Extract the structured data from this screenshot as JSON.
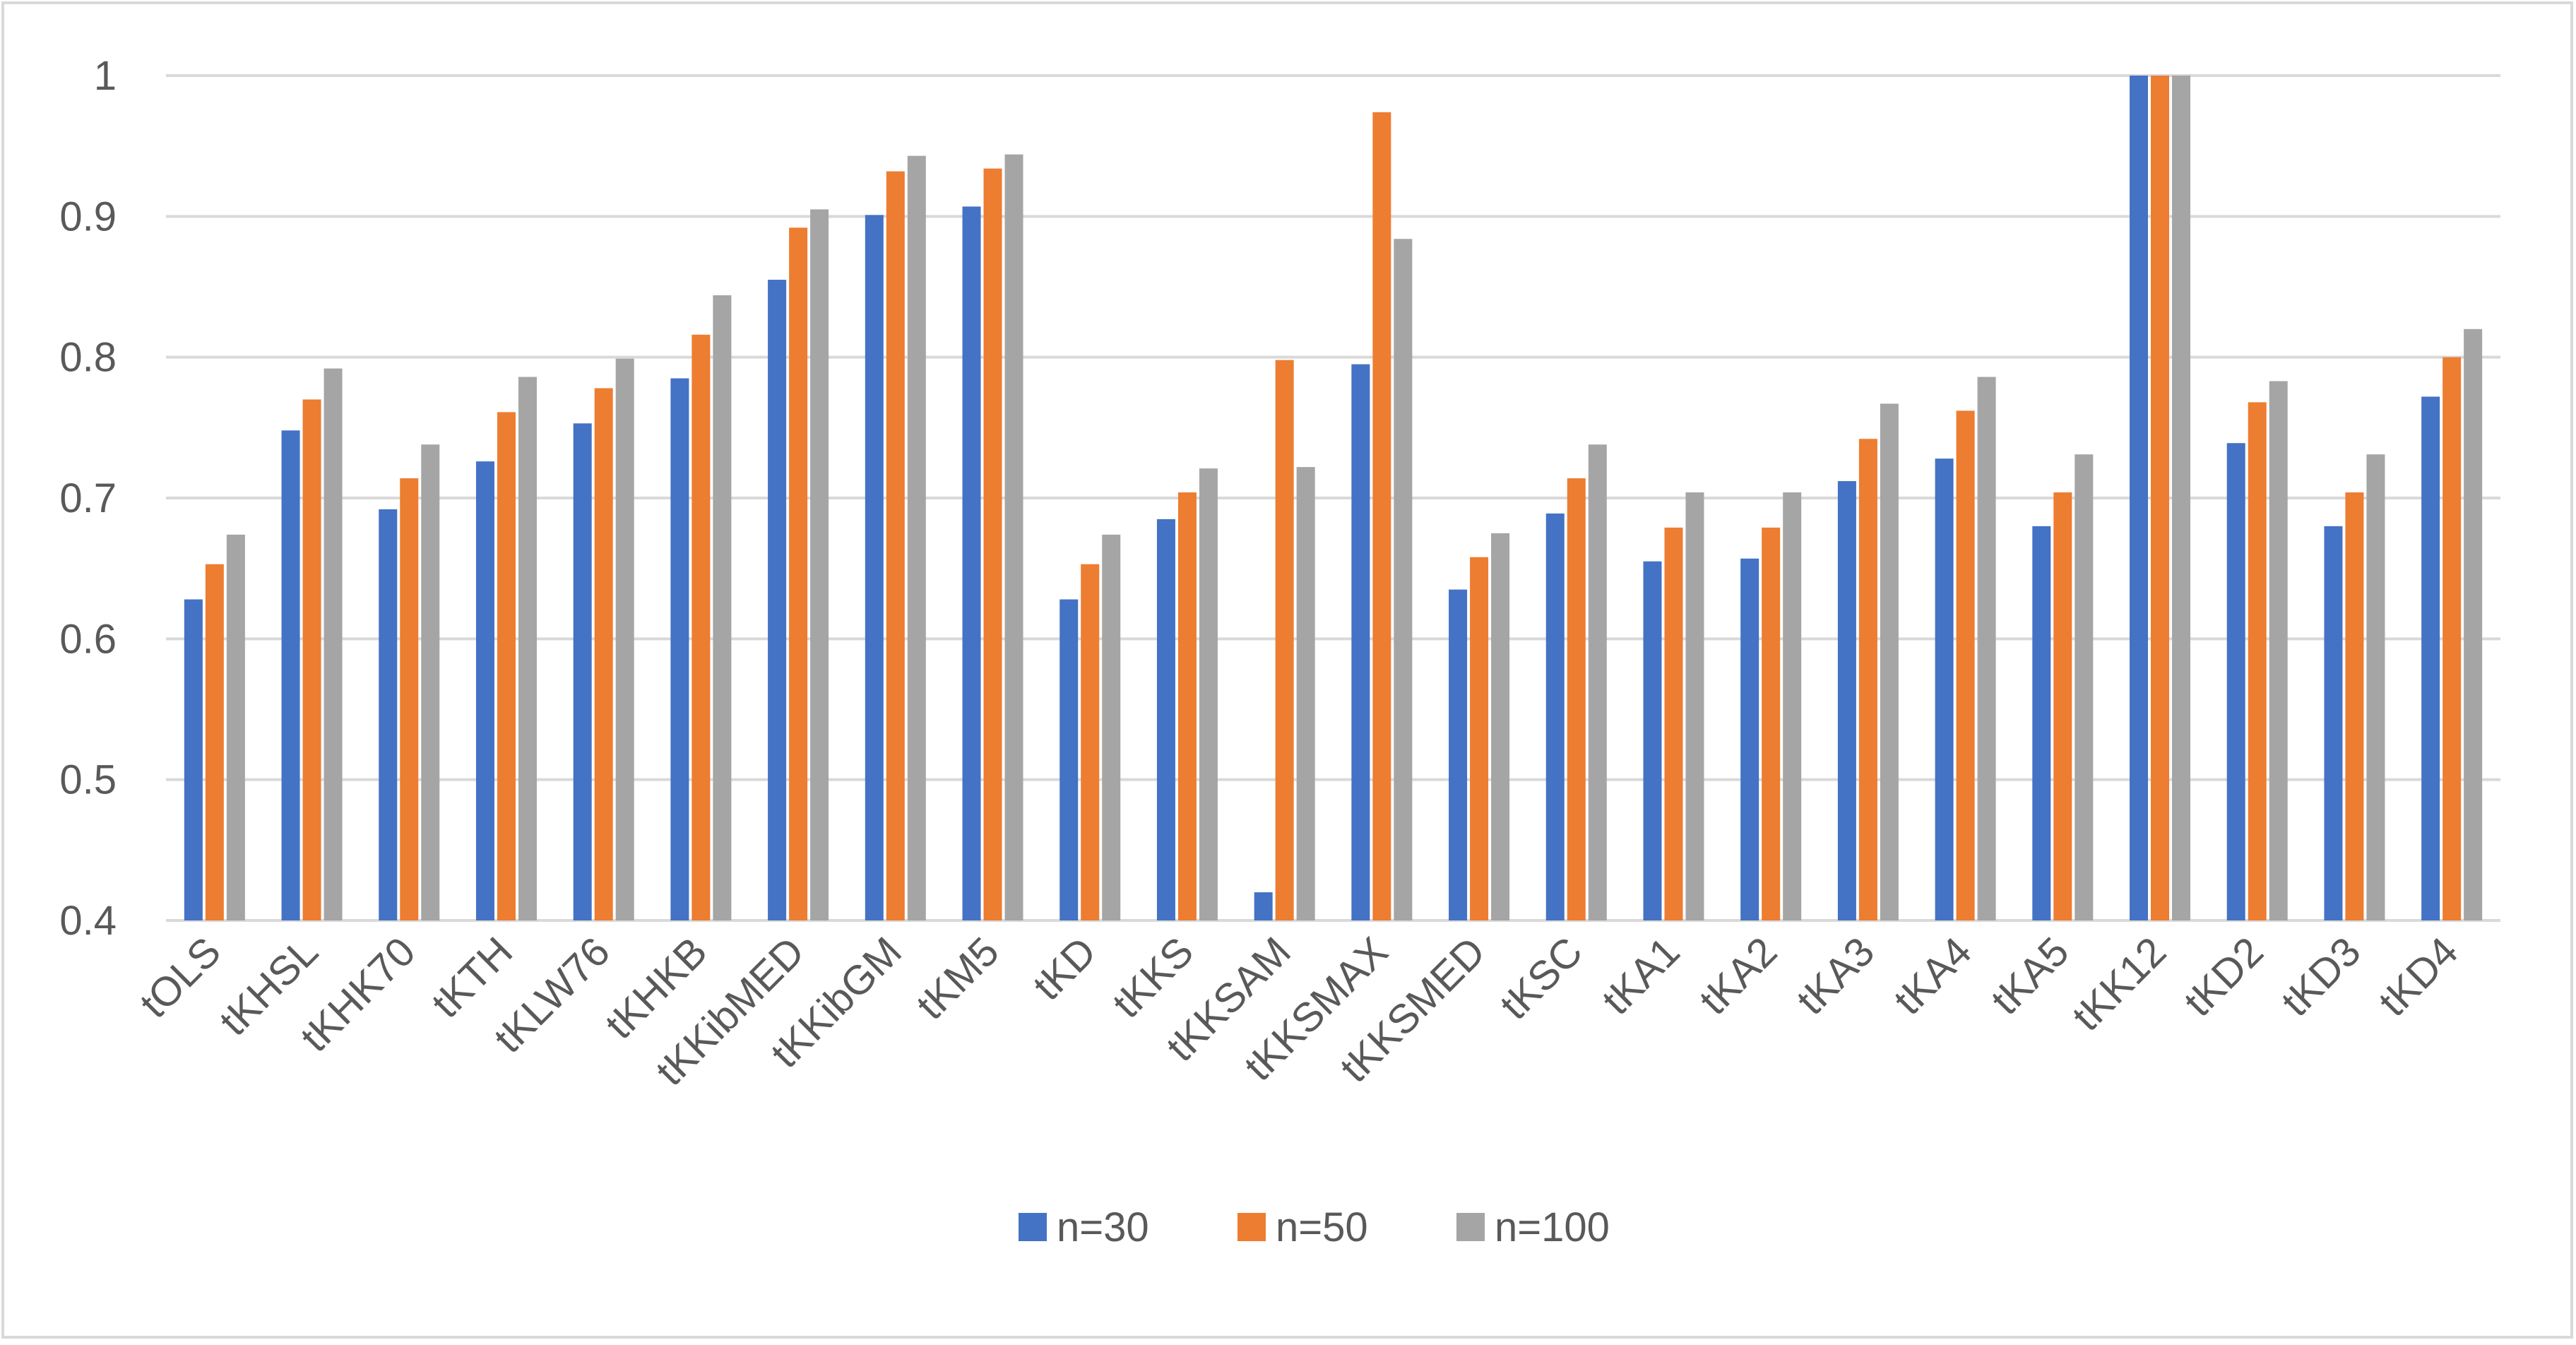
{
  "chart_data": {
    "type": "bar",
    "title": "",
    "xlabel": "",
    "ylabel": "",
    "ylim": [
      0.4,
      1.0
    ],
    "yticks": [
      0.4,
      0.5,
      0.6,
      0.7,
      0.8,
      0.9,
      1
    ],
    "ytick_labels": [
      "0.4",
      "0.5",
      "0.6",
      "0.7",
      "0.8",
      "0.9",
      "1"
    ],
    "grid": true,
    "legend_position": "bottom",
    "categories": [
      "tOLS",
      "tKHSL",
      "tKHK70",
      "tKTH",
      "tKLW76",
      "tKHKB",
      "tKKibMED",
      "tKKibGM",
      "tKM5",
      "tKD",
      "tKKS",
      "tKKSAM",
      "tKKSMAX",
      "tKKSMED",
      "tKSC",
      "tKA1",
      "tKA2",
      "tKA3",
      "tKA4",
      "tKA5",
      "tKK12",
      "tKD2",
      "tKD3",
      "tKD4"
    ],
    "series": [
      {
        "name": "n=30",
        "color": "#4472C4",
        "values": [
          0.628,
          0.748,
          0.692,
          0.726,
          0.753,
          0.785,
          0.855,
          0.901,
          0.907,
          0.628,
          0.685,
          0.42,
          0.795,
          0.635,
          0.689,
          0.655,
          0.657,
          0.712,
          0.728,
          0.68,
          1.0,
          0.739,
          0.68,
          0.772
        ]
      },
      {
        "name": "n=50",
        "color": "#ED7D31",
        "values": [
          0.653,
          0.77,
          0.714,
          0.761,
          0.778,
          0.816,
          0.892,
          0.932,
          0.934,
          0.653,
          0.704,
          0.798,
          0.974,
          0.658,
          0.714,
          0.679,
          0.679,
          0.742,
          0.762,
          0.704,
          1.0,
          0.768,
          0.704,
          0.8
        ]
      },
      {
        "name": "n=100",
        "color": "#A5A5A5",
        "values": [
          0.674,
          0.792,
          0.738,
          0.786,
          0.799,
          0.844,
          0.905,
          0.943,
          0.944,
          0.674,
          0.721,
          0.722,
          0.884,
          0.675,
          0.738,
          0.704,
          0.704,
          0.767,
          0.786,
          0.731,
          1.0,
          0.783,
          0.731,
          0.82
        ]
      }
    ]
  },
  "colors": {
    "gridline": "#D9D9D9",
    "frame": "#D9D9D9",
    "axis_text": "#595959"
  }
}
